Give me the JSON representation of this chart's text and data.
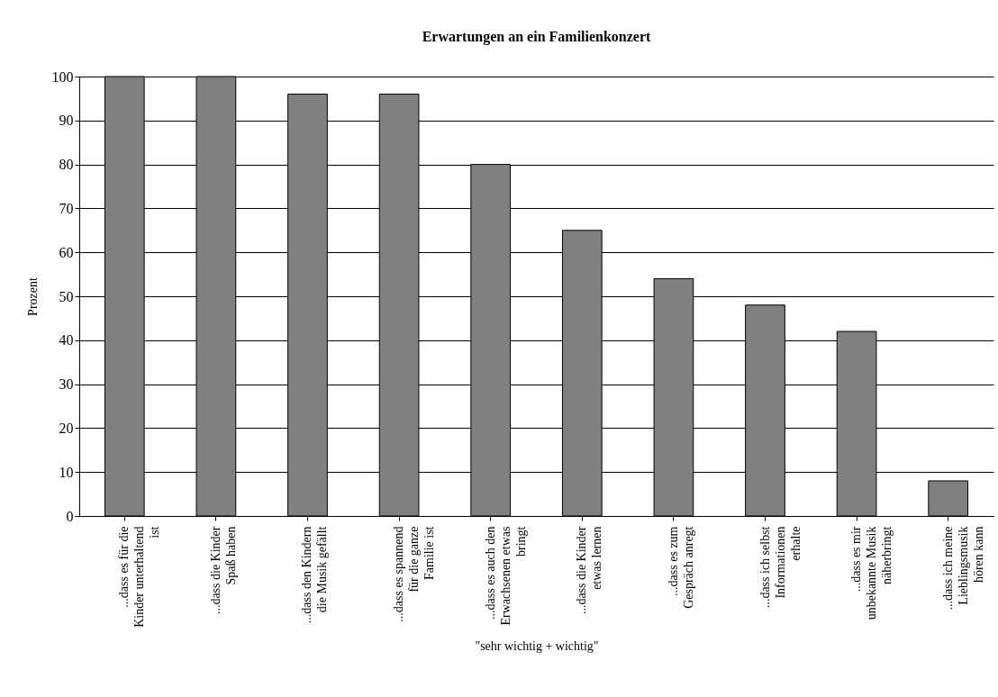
{
  "chart_data": {
    "type": "bar",
    "title": "Erwartungen an ein Familienkonzert",
    "xlabel": "\"sehr wichtig + wichtig\"",
    "ylabel": "Prozent",
    "categories": [
      "...dass es für die Kinder unterhaltend ist",
      "...dass die Kinder Spaß haben",
      "...dass den Kindern die Musik gefällt",
      "...dass es spannend für die ganze Familie ist",
      "...dass es auch den Erwachsenen etwas bringt",
      "...dass die Kinder etwas lernen",
      "...dass es zum Gespräch anregt",
      "...dass ich selbst Informationen erhalte",
      "...dass es mir unbekannte Musik näherbringt",
      "...dass ich meine Lieblingsmusik hören kann"
    ],
    "values": [
      100,
      100,
      96,
      96,
      80,
      65,
      54,
      48,
      42,
      8
    ],
    "color": "#808080",
    "ylim": [
      0,
      100
    ],
    "yticks": [
      0,
      10,
      20,
      30,
      40,
      50,
      60,
      70,
      80,
      90,
      100
    ],
    "grid": "y"
  }
}
